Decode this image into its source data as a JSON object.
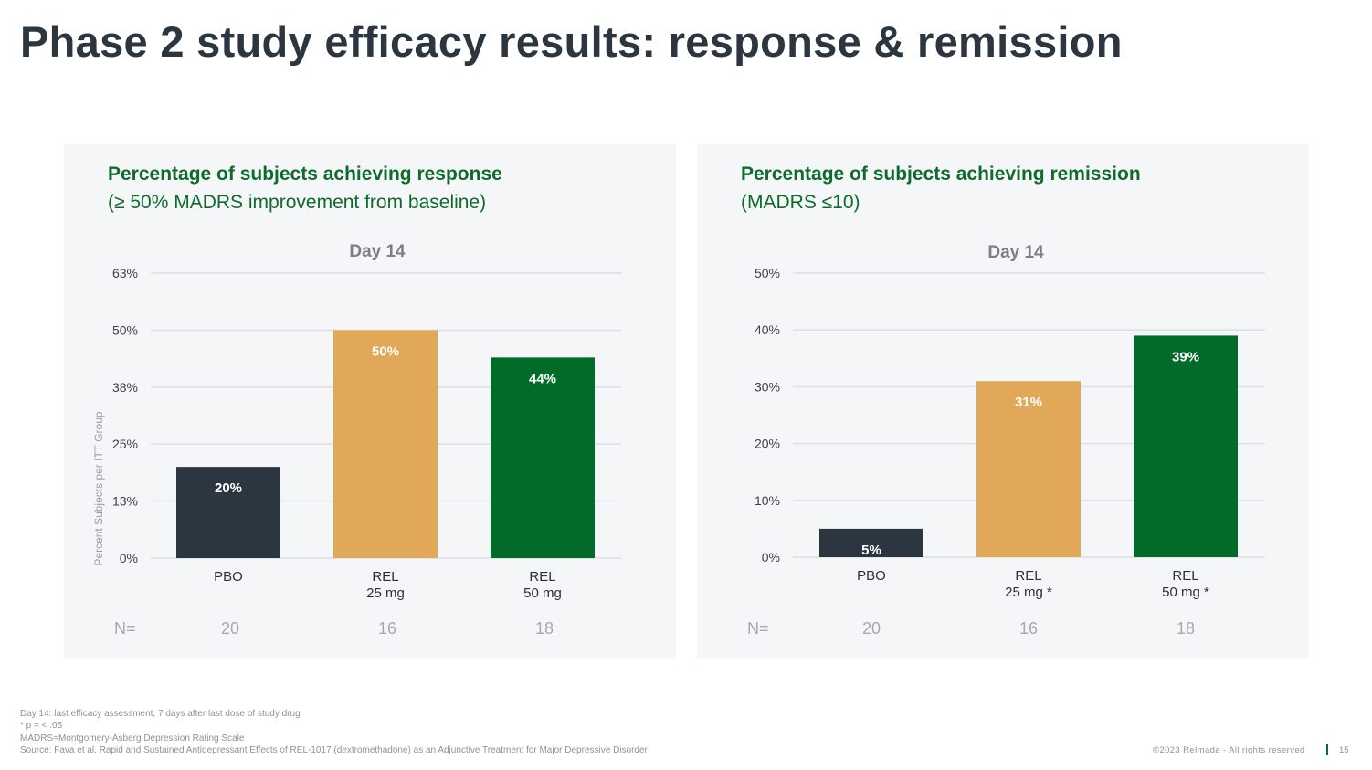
{
  "title": "Phase 2 study efficacy results: response & remission",
  "colors": {
    "pbo": "#2b3640",
    "rel25": "#e2a85a",
    "rel50": "#036b2a",
    "heading": "#0e6b2c"
  },
  "chart_data": [
    {
      "type": "bar",
      "title": "Percentage of subjects achieving response",
      "subtitle": "(≥ 50% MADRS improvement from baseline)",
      "chart_title": "Day 14",
      "ylabel": "Percent Subjects per ITT Group",
      "ylim": [
        0,
        62.5
      ],
      "yticks": [
        0,
        12.5,
        25,
        37.5,
        50,
        62.5
      ],
      "ytick_labels": [
        "0%",
        "13%",
        "25%",
        "38%",
        "50%",
        "63%"
      ],
      "categories": [
        [
          "PBO"
        ],
        [
          "REL",
          "25 mg"
        ],
        [
          "REL",
          "50 mg"
        ]
      ],
      "values": [
        20,
        50,
        44
      ],
      "data_labels": [
        "20%",
        "50%",
        "44%"
      ],
      "n_label": "N=",
      "n": [
        "20",
        "16",
        "18"
      ],
      "grid": true
    },
    {
      "type": "bar",
      "title": "Percentage of subjects achieving remission",
      "subtitle": "(MADRS ≤10)",
      "chart_title": "Day 14",
      "ylabel": "",
      "ylim": [
        0,
        50
      ],
      "yticks": [
        0,
        10,
        20,
        30,
        40,
        50
      ],
      "ytick_labels": [
        "0%",
        "10%",
        "20%",
        "30%",
        "40%",
        "50%"
      ],
      "categories": [
        [
          "PBO"
        ],
        [
          "REL",
          "25 mg *"
        ],
        [
          "REL",
          "50 mg *"
        ]
      ],
      "values": [
        5,
        31,
        39
      ],
      "data_labels": [
        "5%",
        "31%",
        "39%"
      ],
      "n_label": "N=",
      "n": [
        "20",
        "16",
        "18"
      ],
      "grid": true
    }
  ],
  "footnotes": [
    "Day 14: last efficacy assessment, 7 days after last dose of study drug",
    "* p = < .05",
    "MADRS=Montgomery-Asberg Depression Rating Scale",
    "Source:  Fava et al. Rapid and Sustained Antidepressant Effects of REL-1017 (dextromethadone) as an Adjunctive Treatment for Major Depressive Disorder"
  ],
  "copyright": "©2023 Relmada - All rights reserved",
  "page": "15"
}
